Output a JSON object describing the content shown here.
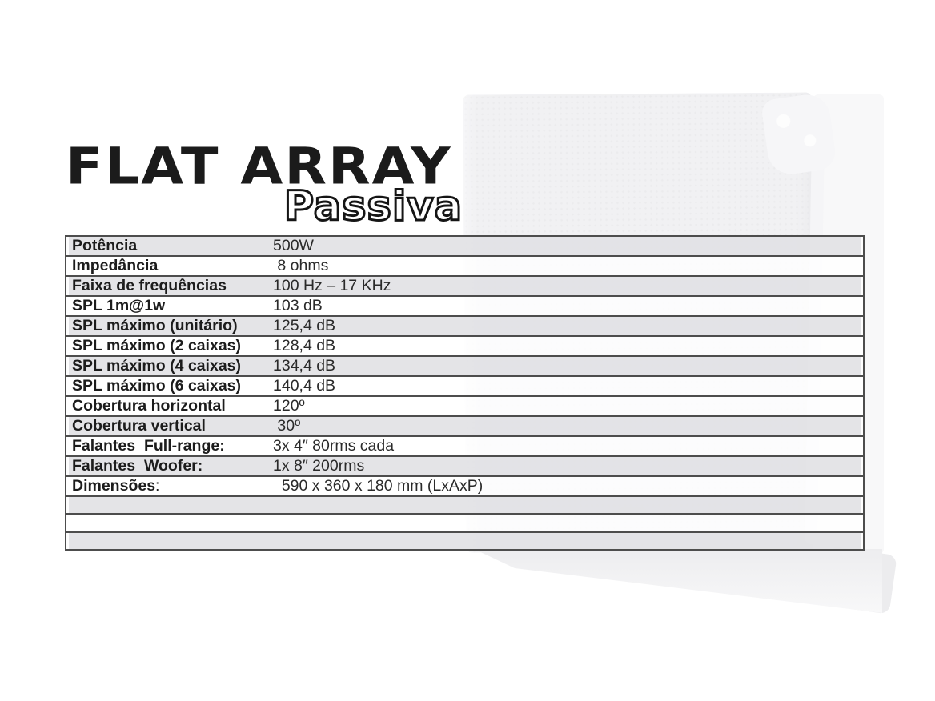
{
  "title": {
    "main": "FLAT ARRAY",
    "subtitle": "Passiva"
  },
  "colors": {
    "table_border": "#4d4d4d",
    "row_gray": "rgba(226,226,229,0.93)",
    "row_white": "rgba(255,255,255,0.80)",
    "label_text": "#1c1c1c",
    "value_text": "#2a2a2a",
    "watermark_gray": "#f1f1f3"
  },
  "watermark": {
    "icon": "speaker-cabinet-photo-watermark"
  },
  "table": {
    "rows": [
      {
        "label": "Potência",
        "value": "500W",
        "shade": "gray"
      },
      {
        "label": "Impedância",
        "value": " 8 ohms",
        "shade": "white"
      },
      {
        "label": "Faixa de frequências",
        "value": "100 Hz – 17 KHz",
        "shade": "gray"
      },
      {
        "label": "SPL 1m@1w",
        "value": "103 dB",
        "shade": "white"
      },
      {
        "label": "SPL máximo (unitário)",
        "value": "125,4 dB",
        "shade": "gray"
      },
      {
        "label": "SPL máximo (2 caixas)",
        "value": "128,4 dB",
        "shade": "white"
      },
      {
        "label": "SPL máximo (4 caixas)",
        "value": "134,4 dB",
        "shade": "gray"
      },
      {
        "label": "SPL máximo (6 caixas)",
        "value": "140,4 dB",
        "shade": "white"
      },
      {
        "label": "Cobertura horizontal",
        "value": "120º",
        "shade": "white"
      },
      {
        "label": "Cobertura vertical",
        "value": " 30º",
        "shade": "gray"
      },
      {
        "label": "Falantes  Full-range:",
        "value": "3x 4″ 80rms cada",
        "shade": "white"
      },
      {
        "label": "Falantes  Woofer:",
        "value": "1x 8″ 200rms",
        "shade": "gray"
      },
      {
        "label": "Dimensões",
        "label_suffix": ":",
        "value": "  590 x 360 x 180 mm (LxAxP)",
        "shade": "white"
      },
      {
        "label": "",
        "value": "",
        "shade": "gray"
      },
      {
        "label": "",
        "value": "",
        "shade": "white"
      },
      {
        "label": "",
        "value": "",
        "shade": "gray"
      }
    ]
  }
}
